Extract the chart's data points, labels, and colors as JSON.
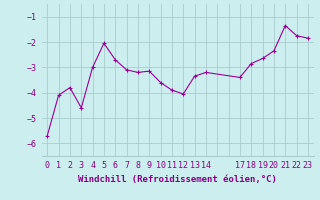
{
  "x": [
    0,
    1,
    2,
    3,
    4,
    5,
    6,
    7,
    8,
    9,
    10,
    11,
    12,
    13,
    14,
    17,
    18,
    19,
    20,
    21,
    22,
    23
  ],
  "y": [
    -5.7,
    -4.1,
    -3.8,
    -4.6,
    -3.0,
    -2.05,
    -2.7,
    -3.1,
    -3.2,
    -3.15,
    -3.6,
    -3.9,
    -4.05,
    -3.35,
    -3.2,
    -3.4,
    -2.85,
    -2.65,
    -2.35,
    -1.35,
    -1.75,
    -1.85
  ],
  "line_color": "#990099",
  "marker": "+",
  "marker_size": 3,
  "bg_color": "#cceeee",
  "grid_color": "#aacccc",
  "xlabel": "Windchill (Refroidissement éolien,°C)",
  "xlabel_color": "#880088",
  "xlabel_fontsize": 6.5,
  "tick_color": "#880088",
  "tick_fontsize": 6,
  "ylim": [
    -6.5,
    -0.5
  ],
  "yticks": [
    -6,
    -5,
    -4,
    -3,
    -2,
    -1
  ]
}
